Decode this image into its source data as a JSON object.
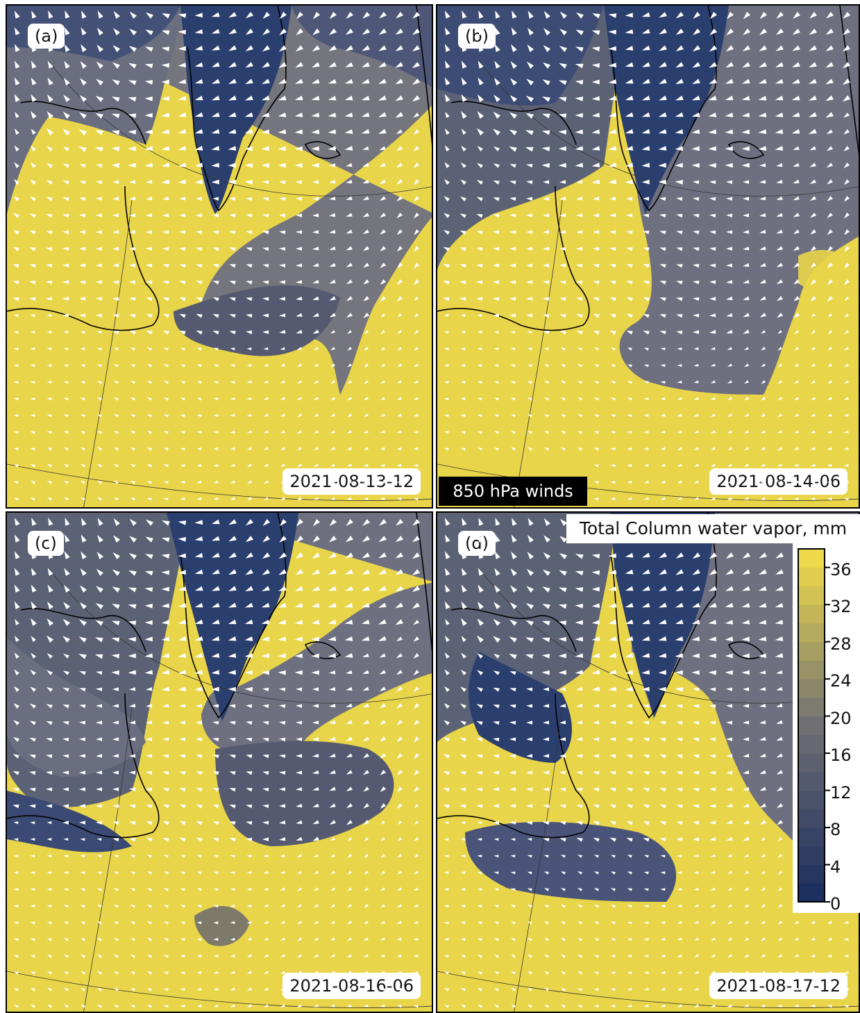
{
  "panels": [
    {
      "label": "(a)",
      "date": "2021-08-13-12"
    },
    {
      "label": "(b)",
      "date": "2021-08-14-06"
    },
    {
      "label": "(c)",
      "date": "2021-08-16-06"
    },
    {
      "label": "(d)",
      "date": "2021-08-17-12"
    }
  ],
  "winds_label": "850 hPa winds",
  "colorbar": {
    "title": "Total Column water vapor, mm",
    "ticks": [
      "36",
      "32",
      "28",
      "24",
      "20",
      "16",
      "12",
      "8",
      "4",
      "0"
    ],
    "range": [
      0,
      38
    ],
    "colormap_low": "#1d2f5e",
    "colormap_mid": "#6f6f74",
    "colormap_high": "#eed94a"
  },
  "colors": {
    "moist": "#e9d54a",
    "dry": "#2b3f6e",
    "mid": "#6e7080",
    "wind_arrows": "#ffffff",
    "coastline": "#000000"
  }
}
